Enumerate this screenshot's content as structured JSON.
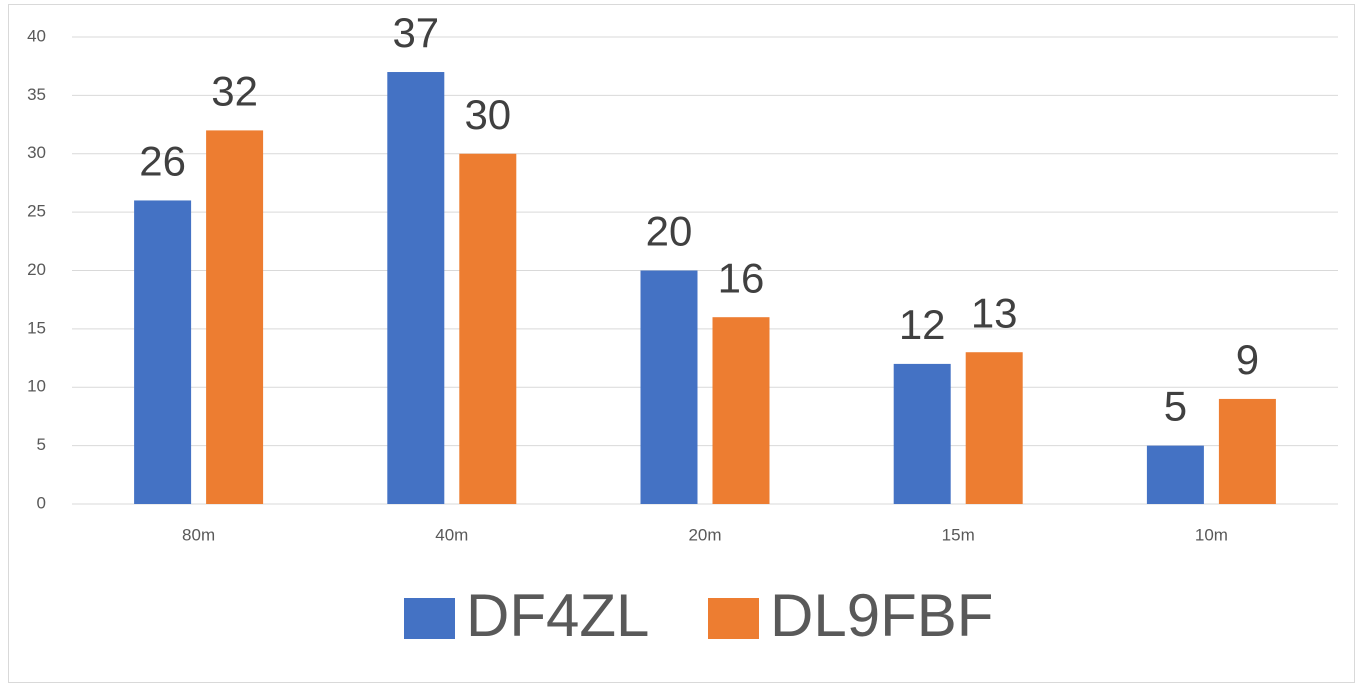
{
  "chart_data": {
    "type": "bar",
    "categories": [
      "80m",
      "40m",
      "20m",
      "15m",
      "10m"
    ],
    "series": [
      {
        "name": "DF4ZL",
        "color": "#4472c4",
        "values": [
          26,
          37,
          20,
          12,
          5
        ]
      },
      {
        "name": "DL9FBF",
        "color": "#ed7d31",
        "values": [
          32,
          30,
          16,
          13,
          9
        ]
      }
    ],
    "ylim": [
      0,
      40
    ],
    "yticks": [
      0,
      5,
      10,
      15,
      20,
      25,
      30,
      35,
      40
    ],
    "grid": true,
    "legend": "bottom"
  }
}
